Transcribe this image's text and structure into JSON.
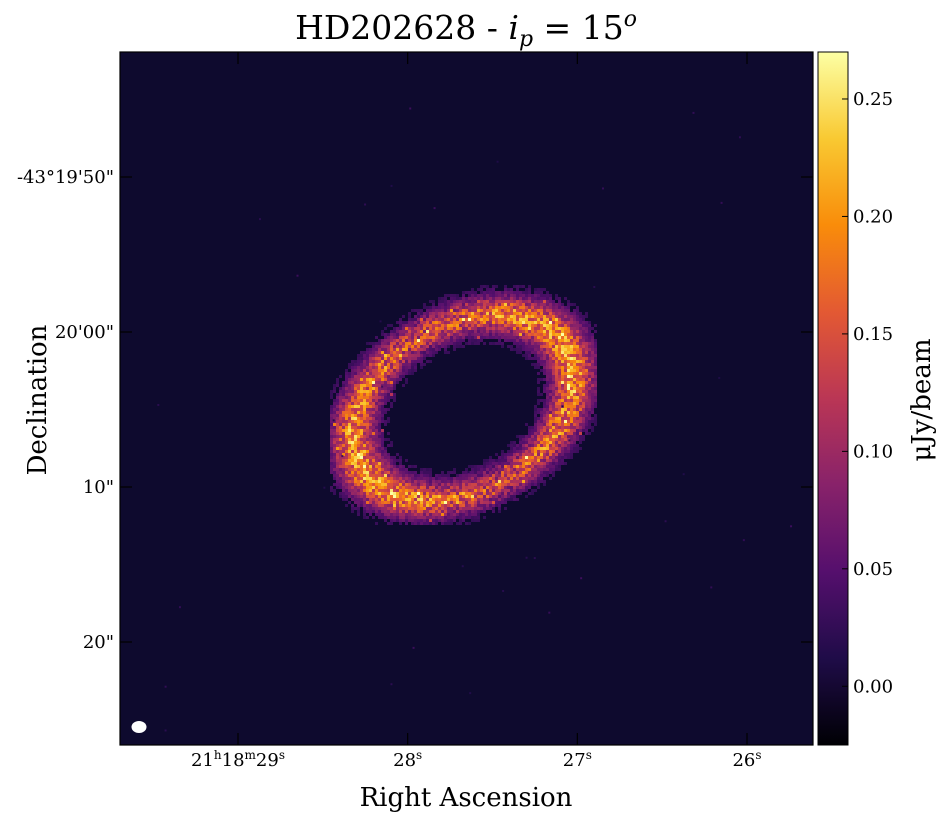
{
  "chart_data": {
    "type": "heatmap",
    "title_main": "HD202628 - ",
    "title_var": "i",
    "title_sub": "p",
    "title_eq": " = 15",
    "title_sup": "o",
    "xlabel": "Right Ascension",
    "ylabel": "Declination",
    "x_ticks": [
      {
        "value": 29,
        "parts": [
          [
            "21",
            ""
          ],
          [
            "h",
            "sup"
          ],
          [
            "18",
            ""
          ],
          [
            "m",
            "sup"
          ],
          [
            "29",
            ""
          ],
          [
            "s",
            "sup"
          ]
        ]
      },
      {
        "value": 28,
        "parts": [
          [
            "28",
            ""
          ],
          [
            "s",
            "sup"
          ]
        ]
      },
      {
        "value": 27,
        "parts": [
          [
            "27",
            ""
          ],
          [
            "s",
            "sup"
          ]
        ]
      },
      {
        "value": 26,
        "parts": [
          [
            "26",
            ""
          ],
          [
            "s",
            "sup"
          ]
        ]
      }
    ],
    "y_ticks": [
      {
        "value": -50,
        "label": "-43°19'50\""
      },
      {
        "value": 0,
        "label": "20'00\""
      },
      {
        "value": 10,
        "label": "10\""
      },
      {
        "value": 20,
        "label": "20\""
      }
    ],
    "colorbar": {
      "label": "μJy/beam",
      "min": -0.025,
      "max": 0.27,
      "ticks": [
        0.0,
        0.05,
        0.1,
        0.15,
        0.2,
        0.25
      ],
      "tick_labels": [
        "0.00",
        "0.05",
        "0.10",
        "0.15",
        "0.20",
        "0.25"
      ],
      "colormap": "inferno",
      "colors": [
        "#000004",
        "#1f0c48",
        "#550f6d",
        "#88226a",
        "#ba3655",
        "#e35933",
        "#f98c0a",
        "#f9c932",
        "#fcffa4"
      ]
    },
    "background_color": "#0e0a2e",
    "beam_color": "#ffffff"
  }
}
